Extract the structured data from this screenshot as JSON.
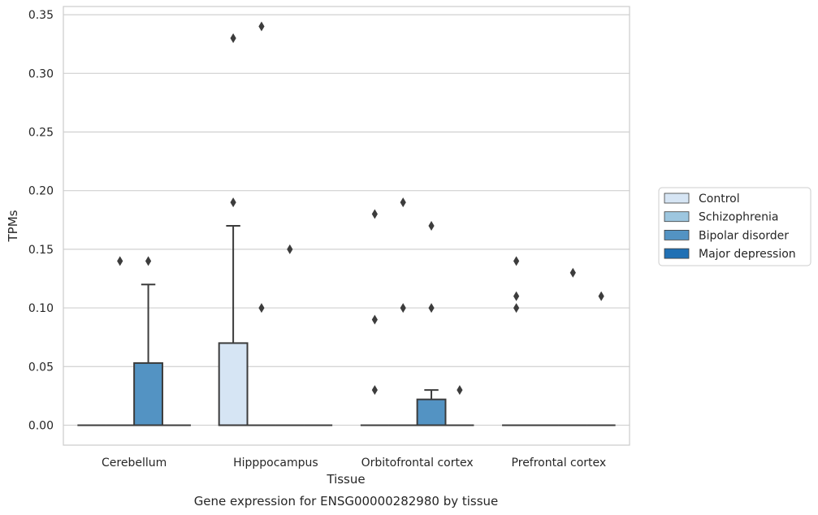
{
  "chart_data": {
    "type": "box",
    "title": "Gene expression for ENSG00000282980 by tissue",
    "xlabel": "Tissue",
    "ylabel": "TPMs",
    "ylim": [
      -0.017,
      0.357
    ],
    "yticks": [
      "0.00",
      "0.05",
      "0.10",
      "0.15",
      "0.20",
      "0.25",
      "0.30",
      "0.35"
    ],
    "categories": [
      "Cerebellum",
      "Hipppocampus",
      "Orbitofrontal cortex",
      "Prefrontal cortex"
    ],
    "grid": true,
    "legend_position": "right",
    "series": [
      {
        "name": "Control",
        "color": "#d6e5f4",
        "boxes": [
          {
            "q1": 0,
            "median": 0,
            "q3": 0,
            "whisker_low": 0,
            "whisker_high": 0,
            "outliers": []
          },
          {
            "q1": 0,
            "median": 0,
            "q3": 0.07,
            "whisker_low": 0,
            "whisker_high": 0.17,
            "outliers": [
              0.19,
              0.33
            ]
          },
          {
            "q1": 0,
            "median": 0,
            "q3": 0,
            "whisker_low": 0,
            "whisker_high": 0,
            "outliers": [
              0.03,
              0.09,
              0.18
            ]
          },
          {
            "q1": 0,
            "median": 0,
            "q3": 0,
            "whisker_low": 0,
            "whisker_high": 0,
            "outliers": [
              0.1,
              0.11,
              0.14
            ]
          }
        ]
      },
      {
        "name": "Schizophrenia",
        "color": "#9dc6df",
        "boxes": [
          {
            "q1": 0,
            "median": 0,
            "q3": 0,
            "whisker_low": 0,
            "whisker_high": 0,
            "outliers": [
              0.14
            ]
          },
          {
            "q1": 0,
            "median": 0,
            "q3": 0,
            "whisker_low": 0,
            "whisker_high": 0,
            "outliers": [
              0.1,
              0.34
            ]
          },
          {
            "q1": 0,
            "median": 0,
            "q3": 0,
            "whisker_low": 0,
            "whisker_high": 0,
            "outliers": [
              0.1,
              0.19
            ]
          },
          {
            "q1": 0,
            "median": 0,
            "q3": 0,
            "whisker_low": 0,
            "whisker_high": 0,
            "outliers": []
          }
        ]
      },
      {
        "name": "Bipolar disorder",
        "color": "#5393c3",
        "boxes": [
          {
            "q1": 0,
            "median": 0,
            "q3": 0.053,
            "whisker_low": 0,
            "whisker_high": 0.12,
            "outliers": [
              0.14
            ]
          },
          {
            "q1": 0,
            "median": 0,
            "q3": 0,
            "whisker_low": 0,
            "whisker_high": 0,
            "outliers": [
              0.15
            ]
          },
          {
            "q1": 0,
            "median": 0,
            "q3": 0.022,
            "whisker_low": 0,
            "whisker_high": 0.03,
            "outliers": [
              0.1,
              0.17
            ]
          },
          {
            "q1": 0,
            "median": 0,
            "q3": 0,
            "whisker_low": 0,
            "whisker_high": 0,
            "outliers": [
              0.13
            ]
          }
        ]
      },
      {
        "name": "Major depression",
        "color": "#2070b4",
        "boxes": [
          {
            "q1": 0,
            "median": 0,
            "q3": 0,
            "whisker_low": 0,
            "whisker_high": 0,
            "outliers": []
          },
          {
            "q1": 0,
            "median": 0,
            "q3": 0,
            "whisker_low": 0,
            "whisker_high": 0,
            "outliers": []
          },
          {
            "q1": 0,
            "median": 0,
            "q3": 0,
            "whisker_low": 0,
            "whisker_high": 0,
            "outliers": [
              0.03
            ]
          },
          {
            "q1": 0,
            "median": 0,
            "q3": 0,
            "whisker_low": 0,
            "whisker_high": 0,
            "outliers": [
              0.11
            ]
          }
        ]
      }
    ]
  }
}
